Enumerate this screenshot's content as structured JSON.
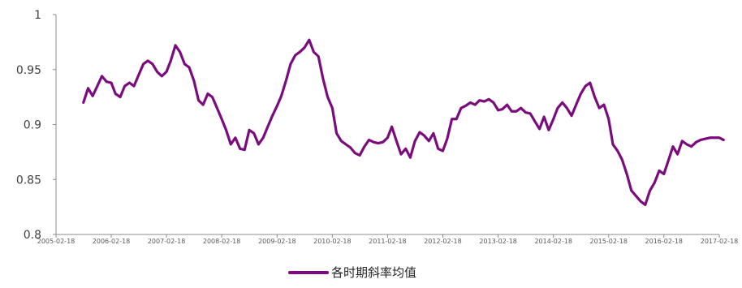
{
  "chart_data": {
    "type": "line",
    "title": "",
    "xlabel": "",
    "ylabel": "",
    "ylim": [
      0.8,
      1.0
    ],
    "yticks": [
      "0.8",
      "0.85",
      "0.9",
      "0.95",
      "1"
    ],
    "xticks": [
      "2005-02-18",
      "2006-02-18",
      "2007-02-18",
      "2008-02-18",
      "2009-02-18",
      "2010-02-18",
      "2011-02-18",
      "2012-02-18",
      "2013-02-18",
      "2014-02-18",
      "2015-02-18",
      "2016-02-18",
      "2017-02-18"
    ],
    "grid": false,
    "legend_position": "bottom",
    "color": "#7B0C7E",
    "series": [
      {
        "name": "各时期斜率均值",
        "x": [
          "2005-08-18",
          "2005-09-18",
          "2005-10-18",
          "2005-11-18",
          "2005-12-18",
          "2006-01-18",
          "2006-02-18",
          "2006-03-18",
          "2006-04-18",
          "2006-05-18",
          "2006-06-18",
          "2006-07-18",
          "2006-08-18",
          "2006-09-18",
          "2006-10-18",
          "2006-11-18",
          "2006-12-18",
          "2007-01-18",
          "2007-02-18",
          "2007-03-18",
          "2007-04-18",
          "2007-05-18",
          "2007-06-18",
          "2007-07-18",
          "2007-08-18",
          "2007-09-18",
          "2007-10-18",
          "2007-11-18",
          "2007-12-18",
          "2008-01-18",
          "2008-02-18",
          "2008-03-18",
          "2008-04-18",
          "2008-05-18",
          "2008-06-18",
          "2008-07-18",
          "2008-08-18",
          "2008-09-18",
          "2008-10-18",
          "2008-11-18",
          "2008-12-18",
          "2009-01-18",
          "2009-02-18",
          "2009-03-18",
          "2009-04-18",
          "2009-05-18",
          "2009-06-18",
          "2009-07-18",
          "2009-08-18",
          "2009-09-18",
          "2009-10-18",
          "2009-11-18",
          "2009-12-18",
          "2010-01-18",
          "2010-02-18",
          "2010-03-18",
          "2010-04-18",
          "2010-05-18",
          "2010-06-18",
          "2010-07-18",
          "2010-08-18",
          "2010-09-18",
          "2010-10-18",
          "2010-11-18",
          "2010-12-18",
          "2011-01-18",
          "2011-02-18",
          "2011-03-18",
          "2011-04-18",
          "2011-05-18",
          "2011-06-18",
          "2011-07-18",
          "2011-08-18",
          "2011-09-18",
          "2011-10-18",
          "2011-11-18",
          "2011-12-18",
          "2012-01-18",
          "2012-02-18",
          "2012-03-18",
          "2012-04-18",
          "2012-05-18",
          "2012-06-18",
          "2012-07-18",
          "2012-08-18",
          "2012-09-18",
          "2012-10-18",
          "2012-11-18",
          "2012-12-18",
          "2013-01-18",
          "2013-02-18",
          "2013-03-18",
          "2013-04-18",
          "2013-05-18",
          "2013-06-18",
          "2013-07-18",
          "2013-08-18",
          "2013-09-18",
          "2013-10-18",
          "2013-11-18",
          "2013-12-18",
          "2014-01-18",
          "2014-02-18",
          "2014-03-18",
          "2014-04-18",
          "2014-05-18",
          "2014-06-18",
          "2014-07-18",
          "2014-08-18",
          "2014-09-18",
          "2014-10-18",
          "2014-11-18",
          "2014-12-18",
          "2015-01-18",
          "2015-02-18",
          "2015-03-18",
          "2015-04-18",
          "2015-05-18",
          "2015-06-18",
          "2015-07-18",
          "2015-08-18",
          "2015-09-18",
          "2015-10-18",
          "2015-11-18",
          "2015-12-18",
          "2016-01-18",
          "2016-02-18",
          "2016-03-18",
          "2016-04-18",
          "2016-05-18",
          "2016-06-18",
          "2016-07-18",
          "2016-08-18",
          "2016-09-18",
          "2016-10-18",
          "2016-11-18",
          "2016-12-18",
          "2017-01-18",
          "2017-02-18",
          "2017-03-18"
        ],
        "values": [
          0.92,
          0.933,
          0.926,
          0.935,
          0.944,
          0.939,
          0.938,
          0.928,
          0.925,
          0.935,
          0.938,
          0.935,
          0.945,
          0.955,
          0.958,
          0.955,
          0.948,
          0.944,
          0.948,
          0.958,
          0.972,
          0.966,
          0.955,
          0.952,
          0.94,
          0.922,
          0.918,
          0.928,
          0.925,
          0.915,
          0.905,
          0.895,
          0.882,
          0.888,
          0.878,
          0.877,
          0.895,
          0.892,
          0.882,
          0.888,
          0.898,
          0.908,
          0.917,
          0.926,
          0.94,
          0.955,
          0.963,
          0.966,
          0.97,
          0.977,
          0.966,
          0.962,
          0.942,
          0.925,
          0.915,
          0.892,
          0.885,
          0.882,
          0.879,
          0.874,
          0.872,
          0.88,
          0.886,
          0.884,
          0.883,
          0.884,
          0.888,
          0.898,
          0.885,
          0.873,
          0.878,
          0.87,
          0.885,
          0.893,
          0.89,
          0.885,
          0.892,
          0.878,
          0.876,
          0.887,
          0.905,
          0.905,
          0.915,
          0.917,
          0.92,
          0.918,
          0.922,
          0.921,
          0.923,
          0.92,
          0.913,
          0.914,
          0.918,
          0.912,
          0.912,
          0.915,
          0.911,
          0.91,
          0.903,
          0.896,
          0.907,
          0.895,
          0.905,
          0.915,
          0.92,
          0.915,
          0.908,
          0.918,
          0.928,
          0.935,
          0.938,
          0.925,
          0.915,
          0.918,
          0.905,
          0.882,
          0.876,
          0.868,
          0.855,
          0.84,
          0.835,
          0.83,
          0.827,
          0.84,
          0.847,
          0.858,
          0.855,
          0.867,
          0.88,
          0.873,
          0.885,
          0.882,
          0.88,
          0.884,
          0.886,
          0.887,
          0.888,
          0.888,
          0.888,
          0.886
        ]
      }
    ]
  }
}
